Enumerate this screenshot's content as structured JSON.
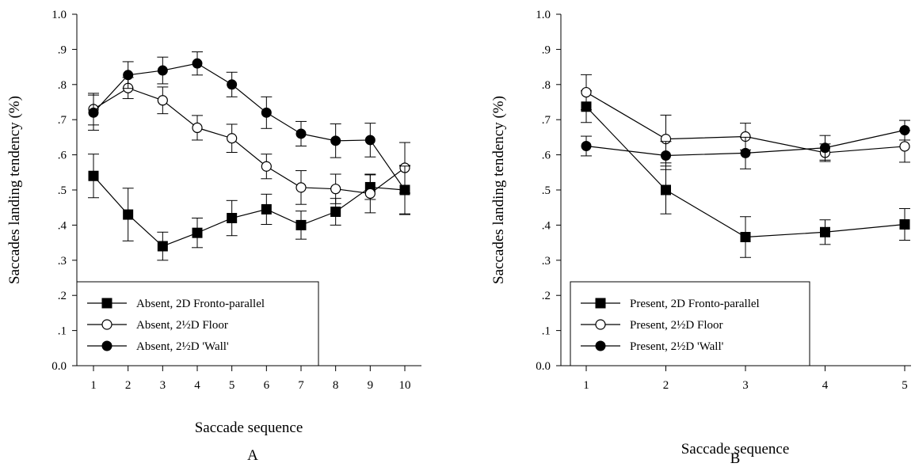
{
  "chart_data": [
    {
      "panel_label": "A",
      "type": "line",
      "xlabel": "Saccade sequence",
      "ylabel": "Saccades landing  tendency (%)",
      "x": [
        1,
        2,
        3,
        4,
        5,
        6,
        7,
        8,
        9,
        10
      ],
      "xticks": [
        "1",
        "2",
        "3",
        "4",
        "5",
        "6",
        "7",
        "8",
        "9",
        "10"
      ],
      "yticks": [
        "0.0",
        ".1",
        ".2",
        ".3",
        ".4",
        ".5",
        ".6",
        ".7",
        ".8",
        ".9",
        "1.0"
      ],
      "ylim": [
        0,
        1.0
      ],
      "legend_position": "lower-left",
      "series": [
        {
          "name": "Absent, 2D Fronto-parallel",
          "marker": "square-filled",
          "values": [
            0.54,
            0.43,
            0.34,
            0.378,
            0.42,
            0.445,
            0.4,
            0.438,
            0.508,
            0.5
          ],
          "errors": [
            0.062,
            0.075,
            0.04,
            0.042,
            0.05,
            0.043,
            0.04,
            0.038,
            0.035,
            0.07
          ]
        },
        {
          "name": "Absent, 2½D Floor",
          "marker": "circle-open",
          "values": [
            0.73,
            0.79,
            0.755,
            0.677,
            0.647,
            0.567,
            0.507,
            0.503,
            0.49,
            0.563
          ],
          "errors": [
            0.045,
            0.03,
            0.038,
            0.035,
            0.04,
            0.035,
            0.048,
            0.042,
            0.055,
            0.072
          ]
        },
        {
          "name": "Absent, 2½D 'Wall'",
          "marker": "circle-filled",
          "values": [
            0.72,
            0.827,
            0.84,
            0.86,
            0.8,
            0.72,
            0.66,
            0.64,
            0.642,
            0.5
          ],
          "errors": [
            0.05,
            0.038,
            0.038,
            0.033,
            0.035,
            0.045,
            0.035,
            0.048,
            0.048,
            0.068
          ]
        }
      ]
    },
    {
      "panel_label": "B",
      "type": "line",
      "xlabel": "Saccade sequence",
      "ylabel": "Saccades landing  tendency (%)",
      "x": [
        1,
        2,
        3,
        4,
        5
      ],
      "xticks": [
        "1",
        "2",
        "3",
        "4",
        "5"
      ],
      "yticks": [
        "0.0",
        ".1",
        ".2",
        ".3",
        ".4",
        ".5",
        ".6",
        ".7",
        ".8",
        ".9",
        "1.0"
      ],
      "ylim": [
        0,
        1.0
      ],
      "legend_position": "lower-left",
      "series": [
        {
          "name": "Present, 2D Fronto-parallel",
          "marker": "square-filled",
          "values": [
            0.737,
            0.5,
            0.366,
            0.38,
            0.402
          ],
          "errors": [
            0.045,
            0.068,
            0.058,
            0.035,
            0.045
          ]
        },
        {
          "name": "Present, 2½D Floor",
          "marker": "circle-open",
          "values": [
            0.778,
            0.645,
            0.652,
            0.606,
            0.624
          ],
          "errors": [
            0.05,
            0.068,
            0.038,
            0.025,
            0.045
          ]
        },
        {
          "name": "Present, 2½D 'Wall'",
          "marker": "circle-filled",
          "values": [
            0.625,
            0.598,
            0.605,
            0.62,
            0.67
          ],
          "errors": [
            0.028,
            0.04,
            0.045,
            0.035,
            0.028
          ]
        }
      ]
    }
  ]
}
